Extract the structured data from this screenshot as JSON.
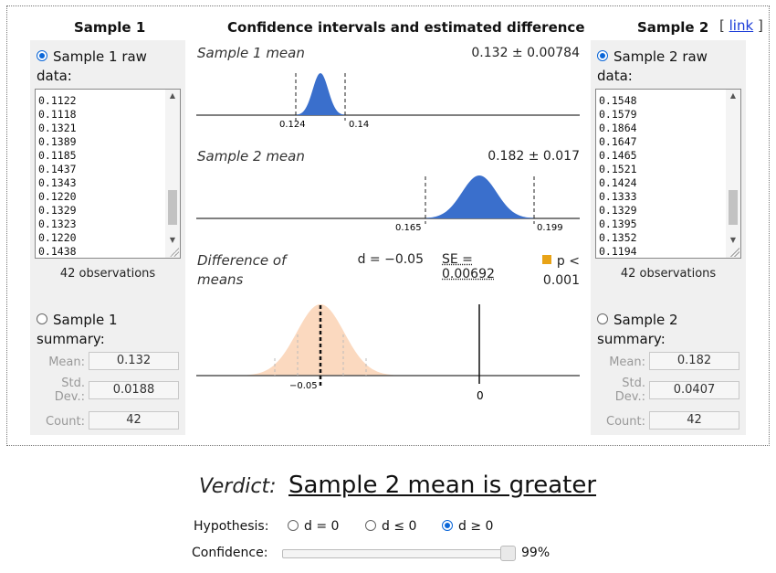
{
  "header": {
    "sample1_title": "Sample 1",
    "center_title": "Confidence intervals and estimated difference",
    "sample2_title": "Sample 2",
    "link_open": "[",
    "link_label": "link",
    "link_close": "]"
  },
  "sample1": {
    "raw_label_line1": "Sample 1 raw",
    "raw_label_line2": "data:",
    "data_lines": [
      "0.1122",
      "0.1118",
      "0.1321",
      "0.1389",
      "0.1185",
      "0.1437",
      "0.1343",
      "0.1220",
      "0.1329",
      "0.1323",
      "0.1220",
      "0.1438"
    ],
    "observations": "42 observations",
    "summary_label_line1": "Sample 1",
    "summary_label_line2": "summary:",
    "mean_label": "Mean:",
    "mean_value": "0.132",
    "sd_label_line1": "Std.",
    "sd_label_line2": "Dev.:",
    "sd_value": "0.0188",
    "count_label": "Count:",
    "count_value": "42"
  },
  "sample2": {
    "raw_label_line1": "Sample 2 raw",
    "raw_label_line2": "data:",
    "data_lines": [
      "0.1548",
      "0.1579",
      "0.1864",
      "0.1647",
      "0.1465",
      "0.1521",
      "0.1424",
      "0.1333",
      "0.1329",
      "0.1395",
      "0.1352",
      "0.1194"
    ],
    "observations": "42 observations",
    "summary_label_line1": "Sample 2",
    "summary_label_line2": "summary:",
    "mean_label": "Mean:",
    "mean_value": "0.182",
    "sd_label_line1": "Std.",
    "sd_label_line2": "Dev.:",
    "sd_value": "0.0407",
    "count_label": "Count:",
    "count_value": "42"
  },
  "ci": {
    "s1_label": "Sample 1 mean",
    "s1_value": "0.132 ± 0.00784",
    "s1_low": "0.124",
    "s1_high": "0.14",
    "s2_label": "Sample 2 mean",
    "s2_value": "0.182 ± 0.017",
    "s2_low": "0.165",
    "s2_high": "0.199",
    "diff_label_line1": "Difference of",
    "diff_label_line2": "means",
    "d_value": "d = −0.05",
    "se_value": "SE = 0.00692",
    "p_line1": "p <",
    "p_line2": "0.001",
    "diff_tick": "−0.05",
    "zero_tick": "0"
  },
  "verdict": {
    "label": "Verdict:",
    "text": "Sample 2 mean is greater"
  },
  "hypothesis": {
    "label": "Hypothesis:",
    "options": [
      "d = 0",
      "d ≤ 0",
      "d ≥ 0"
    ],
    "selected": "d ≥ 0"
  },
  "confidence": {
    "label": "Confidence:",
    "value": "99%",
    "level": 0.99
  },
  "colors": {
    "blue_curve": "#3a6fcc",
    "peach_curve": "#fbd9bf",
    "orange_marker": "#e8a317",
    "radio_accent": "#0a66d8"
  }
}
